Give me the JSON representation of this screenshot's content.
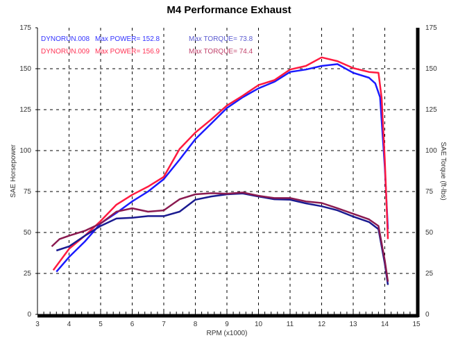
{
  "chart_data": {
    "type": "line",
    "title": "M4 Performance Exhaust",
    "xlabel": "RPM (x1000)",
    "ylabel": "SAE Horsepower",
    "ylabel_right": "SAE Torque (ft-lbs)",
    "xlim": [
      3,
      15
    ],
    "ylim": [
      0,
      175
    ],
    "ylim_right": [
      0,
      175
    ],
    "x_ticks": [
      3,
      4,
      5,
      6,
      7,
      8,
      9,
      10,
      11,
      12,
      13,
      14,
      15
    ],
    "y_ticks": [
      0,
      25,
      50,
      75,
      100,
      125,
      150,
      175
    ],
    "grid": true,
    "legend": [
      {
        "run": "DYNORUN.008",
        "power": "Max POWER= 152.8",
        "torque": "Max TORQUE= 73.8",
        "color": "#3333ff",
        "torque_color": "#5a5ad0"
      },
      {
        "run": "DYNORUN.009",
        "power": "Max POWER= 156.9",
        "torque": "Max TORQUE= 74.4",
        "color": "#ff3355",
        "torque_color": "#c0406a"
      }
    ],
    "series": [
      {
        "name": "DYNORUN.008",
        "kind": "power",
        "color": "#1a1aff",
        "x": [
          3.6,
          4.0,
          4.5,
          5.0,
          5.5,
          6.0,
          6.5,
          7.0,
          7.5,
          8.0,
          8.5,
          9.0,
          9.5,
          10.0,
          10.5,
          11.0,
          11.5,
          12.0,
          12.5,
          13.0,
          13.5,
          13.7,
          13.85,
          14.0,
          14.1
        ],
        "y": [
          26,
          35,
          44.5,
          55.5,
          62,
          69,
          75,
          82.6,
          94.5,
          107,
          116.5,
          126,
          132.6,
          138,
          142,
          148,
          149.5,
          151.7,
          152.8,
          147.5,
          144.5,
          141,
          132.6,
          90,
          52
        ]
      },
      {
        "name": "DYNORUN.009",
        "kind": "power",
        "color": "#ff1a40",
        "x": [
          3.5,
          4.0,
          4.5,
          5.0,
          5.5,
          6.0,
          6.5,
          7.0,
          7.5,
          8.0,
          8.5,
          9.0,
          9.5,
          10.0,
          10.5,
          11.0,
          11.5,
          12.0,
          12.5,
          13.0,
          13.5,
          13.8,
          13.9,
          14.0,
          14.1
        ],
        "y": [
          27,
          40,
          48,
          57,
          67,
          73,
          78,
          84,
          101,
          111,
          119,
          127.5,
          133.5,
          140,
          143,
          149.5,
          151.7,
          156.9,
          154.6,
          150.4,
          148,
          147.5,
          132,
          94.5,
          46
        ]
      },
      {
        "name": "DYNORUN.008",
        "kind": "torque",
        "color": "#1a1a90",
        "x": [
          3.6,
          4.0,
          4.5,
          5.0,
          5.5,
          6.0,
          6.5,
          7.0,
          7.5,
          8.0,
          8.5,
          9.0,
          9.5,
          10.0,
          10.5,
          11.0,
          11.5,
          12.0,
          12.5,
          13.0,
          13.5,
          13.8,
          14.0,
          14.1
        ],
        "y": [
          39,
          41.5,
          48,
          54,
          58.5,
          59,
          60,
          60,
          62.7,
          70,
          72,
          73.3,
          73.8,
          72,
          70.3,
          70,
          67.8,
          66,
          63.5,
          59.7,
          56.4,
          52,
          31,
          18
        ]
      },
      {
        "name": "DYNORUN.009",
        "kind": "torque",
        "color": "#8a1a50",
        "x": [
          3.45,
          3.7,
          4.0,
          4.5,
          5.0,
          5.5,
          6.0,
          6.5,
          7.0,
          7.5,
          8.0,
          8.5,
          9.0,
          9.5,
          10.0,
          10.5,
          11.0,
          11.5,
          12.0,
          12.5,
          13.0,
          13.5,
          13.8,
          14.0,
          14.1
        ],
        "y": [
          41.5,
          46,
          48,
          51,
          55.5,
          62.7,
          64.8,
          62.7,
          63.5,
          70.3,
          73.3,
          74,
          73.7,
          74.4,
          72.4,
          71,
          71,
          69,
          68,
          64.8,
          61.4,
          58,
          54,
          33,
          20
        ]
      }
    ]
  }
}
